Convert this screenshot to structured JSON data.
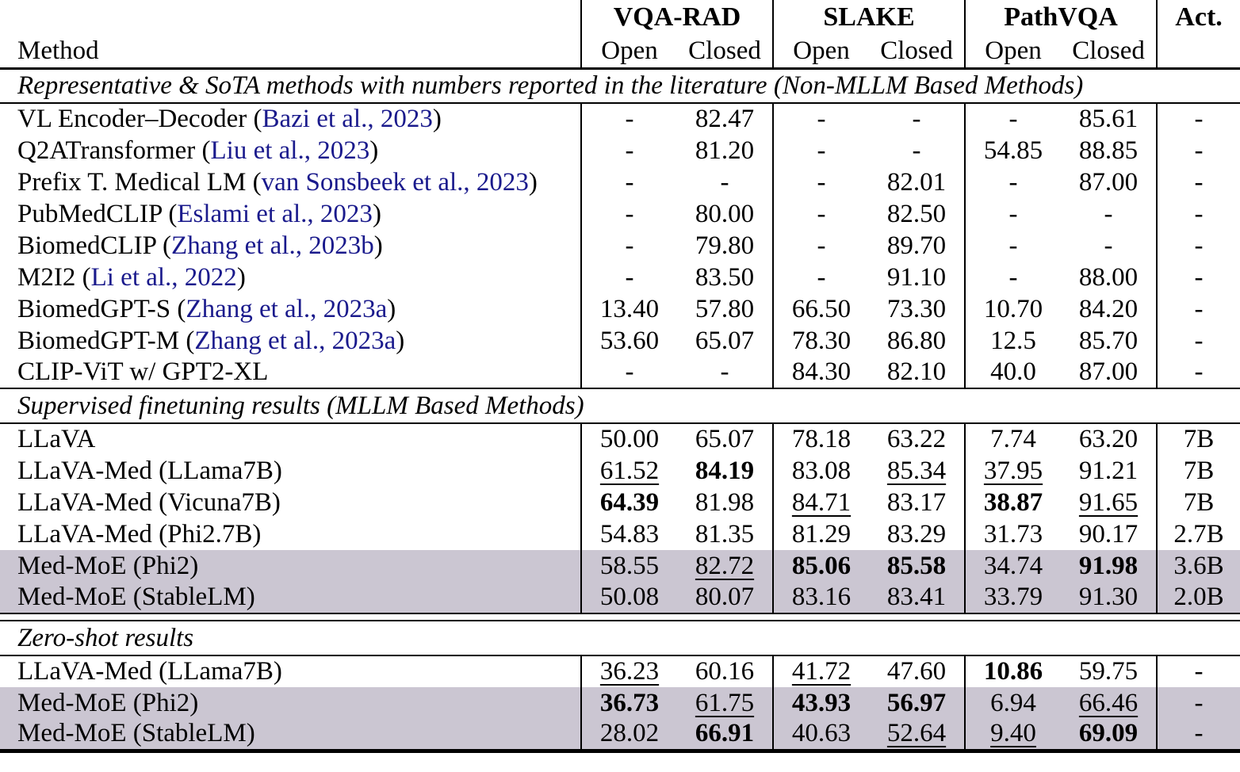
{
  "header": {
    "method_label": "Method",
    "act_label": "Act.",
    "groups": [
      {
        "label": "VQA-RAD",
        "subcols": [
          "Open",
          "Closed"
        ]
      },
      {
        "label": "SLAKE",
        "subcols": [
          "Open",
          "Closed"
        ]
      },
      {
        "label": "PathVQA",
        "subcols": [
          "Open",
          "Closed"
        ]
      }
    ]
  },
  "colors": {
    "citation_link": "#1a1a8c",
    "highlight_row": "#cbc6d2",
    "rule": "#000000"
  },
  "sections": [
    {
      "title": "Representative & SoTA methods with numbers reported in the literature (Non-MLLM Based Methods)",
      "divider": "single",
      "rows": [
        {
          "method": "VL Encoder–Decoder",
          "citation": "Bazi et al., 2023",
          "values": [
            "-",
            "82.47",
            "-",
            "-",
            "-",
            "85.61"
          ],
          "styles": [
            "",
            "",
            "",
            "",
            "",
            ""
          ],
          "act": "-",
          "highlight": false
        },
        {
          "method": "Q2ATransformer",
          "citation": "Liu et al., 2023",
          "values": [
            "-",
            "81.20",
            "-",
            "-",
            "54.85",
            "88.85"
          ],
          "styles": [
            "",
            "",
            "",
            "",
            "",
            ""
          ],
          "act": "-",
          "highlight": false
        },
        {
          "method": "Prefix T. Medical LM",
          "citation": "van Sonsbeek et al., 2023",
          "values": [
            "-",
            "-",
            "-",
            "82.01",
            "-",
            "87.00"
          ],
          "styles": [
            "",
            "",
            "",
            "",
            "",
            ""
          ],
          "act": "-",
          "highlight": false
        },
        {
          "method": "PubMedCLIP",
          "citation": "Eslami et al., 2023",
          "values": [
            "-",
            "80.00",
            "-",
            "82.50",
            "-",
            "-"
          ],
          "styles": [
            "",
            "",
            "",
            "",
            "",
            ""
          ],
          "act": "-",
          "highlight": false
        },
        {
          "method": "BiomedCLIP",
          "citation": "Zhang et al., 2023b",
          "values": [
            "-",
            "79.80",
            "-",
            "89.70",
            "-",
            "-"
          ],
          "styles": [
            "",
            "",
            "",
            "",
            "",
            ""
          ],
          "act": "-",
          "highlight": false
        },
        {
          "method": "M2I2",
          "citation": "Li et al., 2022",
          "values": [
            "-",
            "83.50",
            "-",
            "91.10",
            "-",
            "88.00"
          ],
          "styles": [
            "",
            "",
            "",
            "",
            "",
            ""
          ],
          "act": "-",
          "highlight": false
        },
        {
          "method": "BiomedGPT-S",
          "citation": "Zhang et al., 2023a",
          "values": [
            "13.40",
            "57.80",
            "66.50",
            "73.30",
            "10.70",
            "84.20"
          ],
          "styles": [
            "",
            "",
            "",
            "",
            "",
            ""
          ],
          "act": "-",
          "highlight": false
        },
        {
          "method": "BiomedGPT-M",
          "citation": "Zhang et al., 2023a",
          "values": [
            "53.60",
            "65.07",
            "78.30",
            "86.80",
            "12.5",
            "85.70"
          ],
          "styles": [
            "",
            "",
            "",
            "",
            "",
            ""
          ],
          "act": "-",
          "highlight": false
        },
        {
          "method": "CLIP-ViT w/ GPT2-XL",
          "citation": null,
          "values": [
            "-",
            "-",
            "84.30",
            "82.10",
            "40.0",
            "87.00"
          ],
          "styles": [
            "",
            "",
            "",
            "",
            "",
            ""
          ],
          "act": "-",
          "highlight": false
        }
      ]
    },
    {
      "title": "Supervised finetuning results (MLLM Based Methods)",
      "divider": "single",
      "rows": [
        {
          "method": "LLaVA",
          "citation": null,
          "values": [
            "50.00",
            "65.07",
            "78.18",
            "63.22",
            "7.74",
            "63.20"
          ],
          "styles": [
            "",
            "",
            "",
            "",
            "",
            ""
          ],
          "act": "7B",
          "highlight": false
        },
        {
          "method": "LLaVA-Med (LLama7B)",
          "citation": null,
          "values": [
            "61.52",
            "84.19",
            "83.08",
            "85.34",
            "37.95",
            "91.21"
          ],
          "styles": [
            "u",
            "b",
            "",
            "u",
            "u",
            ""
          ],
          "act": "7B",
          "highlight": false
        },
        {
          "method": "LLaVA-Med (Vicuna7B)",
          "citation": null,
          "values": [
            "64.39",
            "81.98",
            "84.71",
            "83.17",
            "38.87",
            "91.65"
          ],
          "styles": [
            "b",
            "",
            "u",
            "",
            "b",
            "u"
          ],
          "act": "7B",
          "highlight": false
        },
        {
          "method": "LLaVA-Med (Phi2.7B)",
          "citation": null,
          "values": [
            "54.83",
            "81.35",
            "81.29",
            "83.29",
            "31.73",
            "90.17"
          ],
          "styles": [
            "",
            "",
            "",
            "",
            "",
            ""
          ],
          "act": "2.7B",
          "highlight": false
        },
        {
          "method": "Med-MoE (Phi2)",
          "citation": null,
          "values": [
            "58.55",
            "82.72",
            "85.06",
            "85.58",
            "34.74",
            "91.98"
          ],
          "styles": [
            "",
            "u",
            "b",
            "b",
            "",
            "b"
          ],
          "act": "3.6B",
          "highlight": true
        },
        {
          "method": "Med-MoE (StableLM)",
          "citation": null,
          "values": [
            "50.08",
            "80.07",
            "83.16",
            "83.41",
            "33.79",
            "91.30"
          ],
          "styles": [
            "",
            "",
            "",
            "",
            "",
            ""
          ],
          "act": "2.0B",
          "highlight": true
        }
      ]
    },
    {
      "title": "Zero-shot results",
      "divider": "double",
      "rows": [
        {
          "method": "LLaVA-Med (LLama7B)",
          "citation": null,
          "values": [
            "36.23",
            "60.16",
            "41.72",
            "47.60",
            "10.86",
            "59.75"
          ],
          "styles": [
            "u",
            "",
            "u",
            "",
            "b",
            ""
          ],
          "act": "-",
          "highlight": false
        },
        {
          "method": "Med-MoE (Phi2)",
          "citation": null,
          "values": [
            "36.73",
            "61.75",
            "43.93",
            "56.97",
            "6.94",
            "66.46"
          ],
          "styles": [
            "b",
            "u",
            "b",
            "b",
            "",
            "u"
          ],
          "act": "-",
          "highlight": true
        },
        {
          "method": "Med-MoE (StableLM)",
          "citation": null,
          "values": [
            "28.02",
            "66.91",
            "40.63",
            "52.64",
            "9.40",
            "69.09"
          ],
          "styles": [
            "",
            "b",
            "",
            "u",
            "u",
            "b"
          ],
          "act": "-",
          "highlight": true
        }
      ]
    }
  ]
}
